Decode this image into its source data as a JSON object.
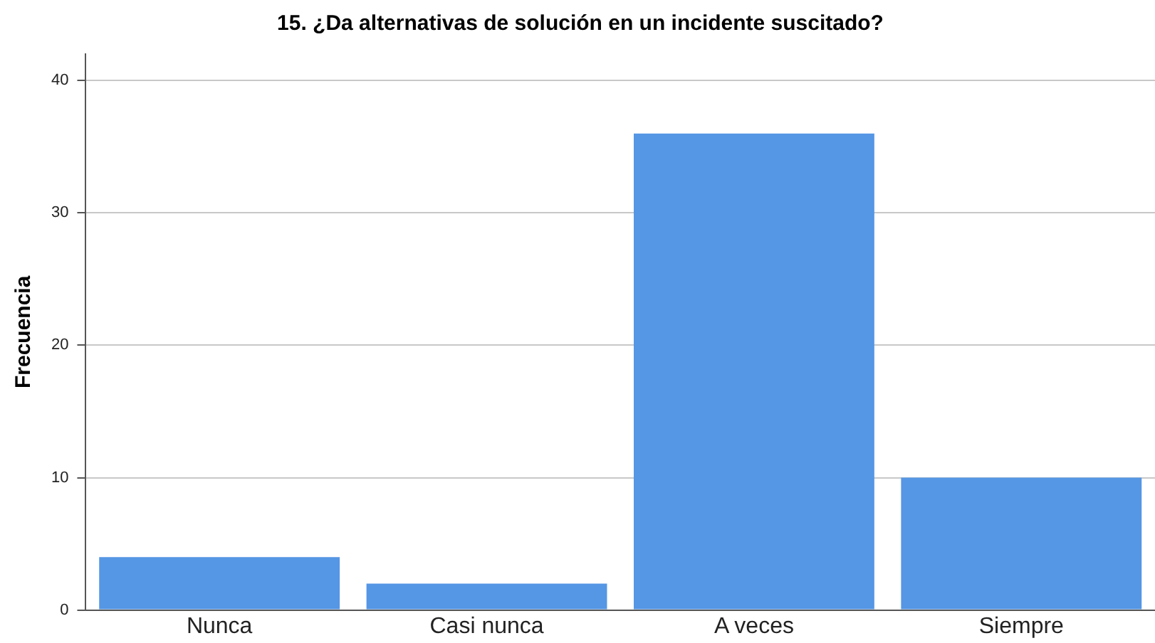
{
  "chart_data": {
    "type": "bar",
    "title": "15. ¿Da alternativas de solución en un incidente suscitado?",
    "ylabel": "Frecuencia",
    "categories": [
      "Nunca",
      "Casi nunca",
      "A veces",
      "Siempre"
    ],
    "values": [
      4,
      2,
      36,
      10
    ],
    "color": "#5596e5",
    "ylim": [
      0,
      42
    ],
    "yticks": [
      0,
      10,
      20,
      30,
      40
    ],
    "grid": "y"
  }
}
